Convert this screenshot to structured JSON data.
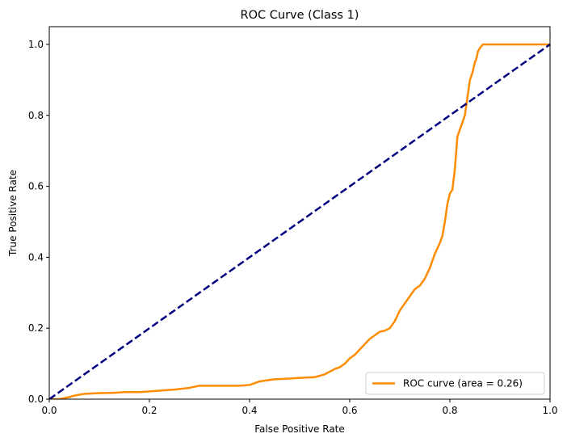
{
  "chart_data": {
    "type": "line",
    "title": "ROC Curve (Class 1)",
    "xlabel": "False Positive Rate",
    "ylabel": "True Positive Rate",
    "xlim": [
      0.0,
      1.05
    ],
    "ylim": [
      0.0,
      1.05
    ],
    "xticks": [
      0.0,
      0.2,
      0.4,
      0.6,
      0.8,
      1.0
    ],
    "xtick_labels": [
      "0.0",
      "0.2",
      "0.4",
      "0.6",
      "0.8",
      "1.0"
    ],
    "yticks": [
      0.0,
      0.2,
      0.4,
      0.6,
      0.8,
      1.0
    ],
    "ytick_labels": [
      "0.0",
      "0.2",
      "0.4",
      "0.6",
      "0.8",
      "1.0"
    ],
    "grid": false,
    "legend_position": "lower-right",
    "series": [
      {
        "name": "ROC curve (area = 0.26)",
        "color": "#ff8c00",
        "style": "solid",
        "x": [
          0.0,
          0.02,
          0.03,
          0.04,
          0.05,
          0.07,
          0.1,
          0.13,
          0.15,
          0.18,
          0.2,
          0.23,
          0.25,
          0.28,
          0.3,
          0.35,
          0.38,
          0.4,
          0.42,
          0.45,
          0.48,
          0.5,
          0.53,
          0.55,
          0.57,
          0.58,
          0.59,
          0.6,
          0.61,
          0.62,
          0.63,
          0.64,
          0.65,
          0.66,
          0.67,
          0.68,
          0.69,
          0.7,
          0.71,
          0.72,
          0.73,
          0.74,
          0.75,
          0.76,
          0.77,
          0.78,
          0.785,
          0.79,
          0.795,
          0.8,
          0.805,
          0.81,
          0.815,
          0.82,
          0.825,
          0.83,
          0.835,
          0.84,
          0.845,
          0.85,
          0.853,
          0.856,
          0.86,
          0.863,
          0.866,
          0.87,
          0.9,
          0.95,
          1.0
        ],
        "y": [
          0.0,
          0.0,
          0.003,
          0.006,
          0.01,
          0.015,
          0.017,
          0.018,
          0.02,
          0.02,
          0.022,
          0.025,
          0.027,
          0.032,
          0.038,
          0.038,
          0.038,
          0.04,
          0.05,
          0.056,
          0.058,
          0.06,
          0.062,
          0.07,
          0.085,
          0.09,
          0.1,
          0.115,
          0.125,
          0.14,
          0.155,
          0.17,
          0.18,
          0.19,
          0.193,
          0.2,
          0.22,
          0.25,
          0.27,
          0.29,
          0.31,
          0.32,
          0.34,
          0.37,
          0.41,
          0.44,
          0.46,
          0.5,
          0.55,
          0.58,
          0.59,
          0.65,
          0.74,
          0.76,
          0.78,
          0.8,
          0.85,
          0.9,
          0.92,
          0.95,
          0.96,
          0.98,
          0.99,
          0.995,
          1.0,
          1.0,
          1.0,
          1.0,
          1.0
        ]
      },
      {
        "name": "",
        "color": "#000080",
        "style": "dashed",
        "x": [
          0.0,
          1.0
        ],
        "y": [
          0.0,
          1.0
        ]
      }
    ]
  }
}
